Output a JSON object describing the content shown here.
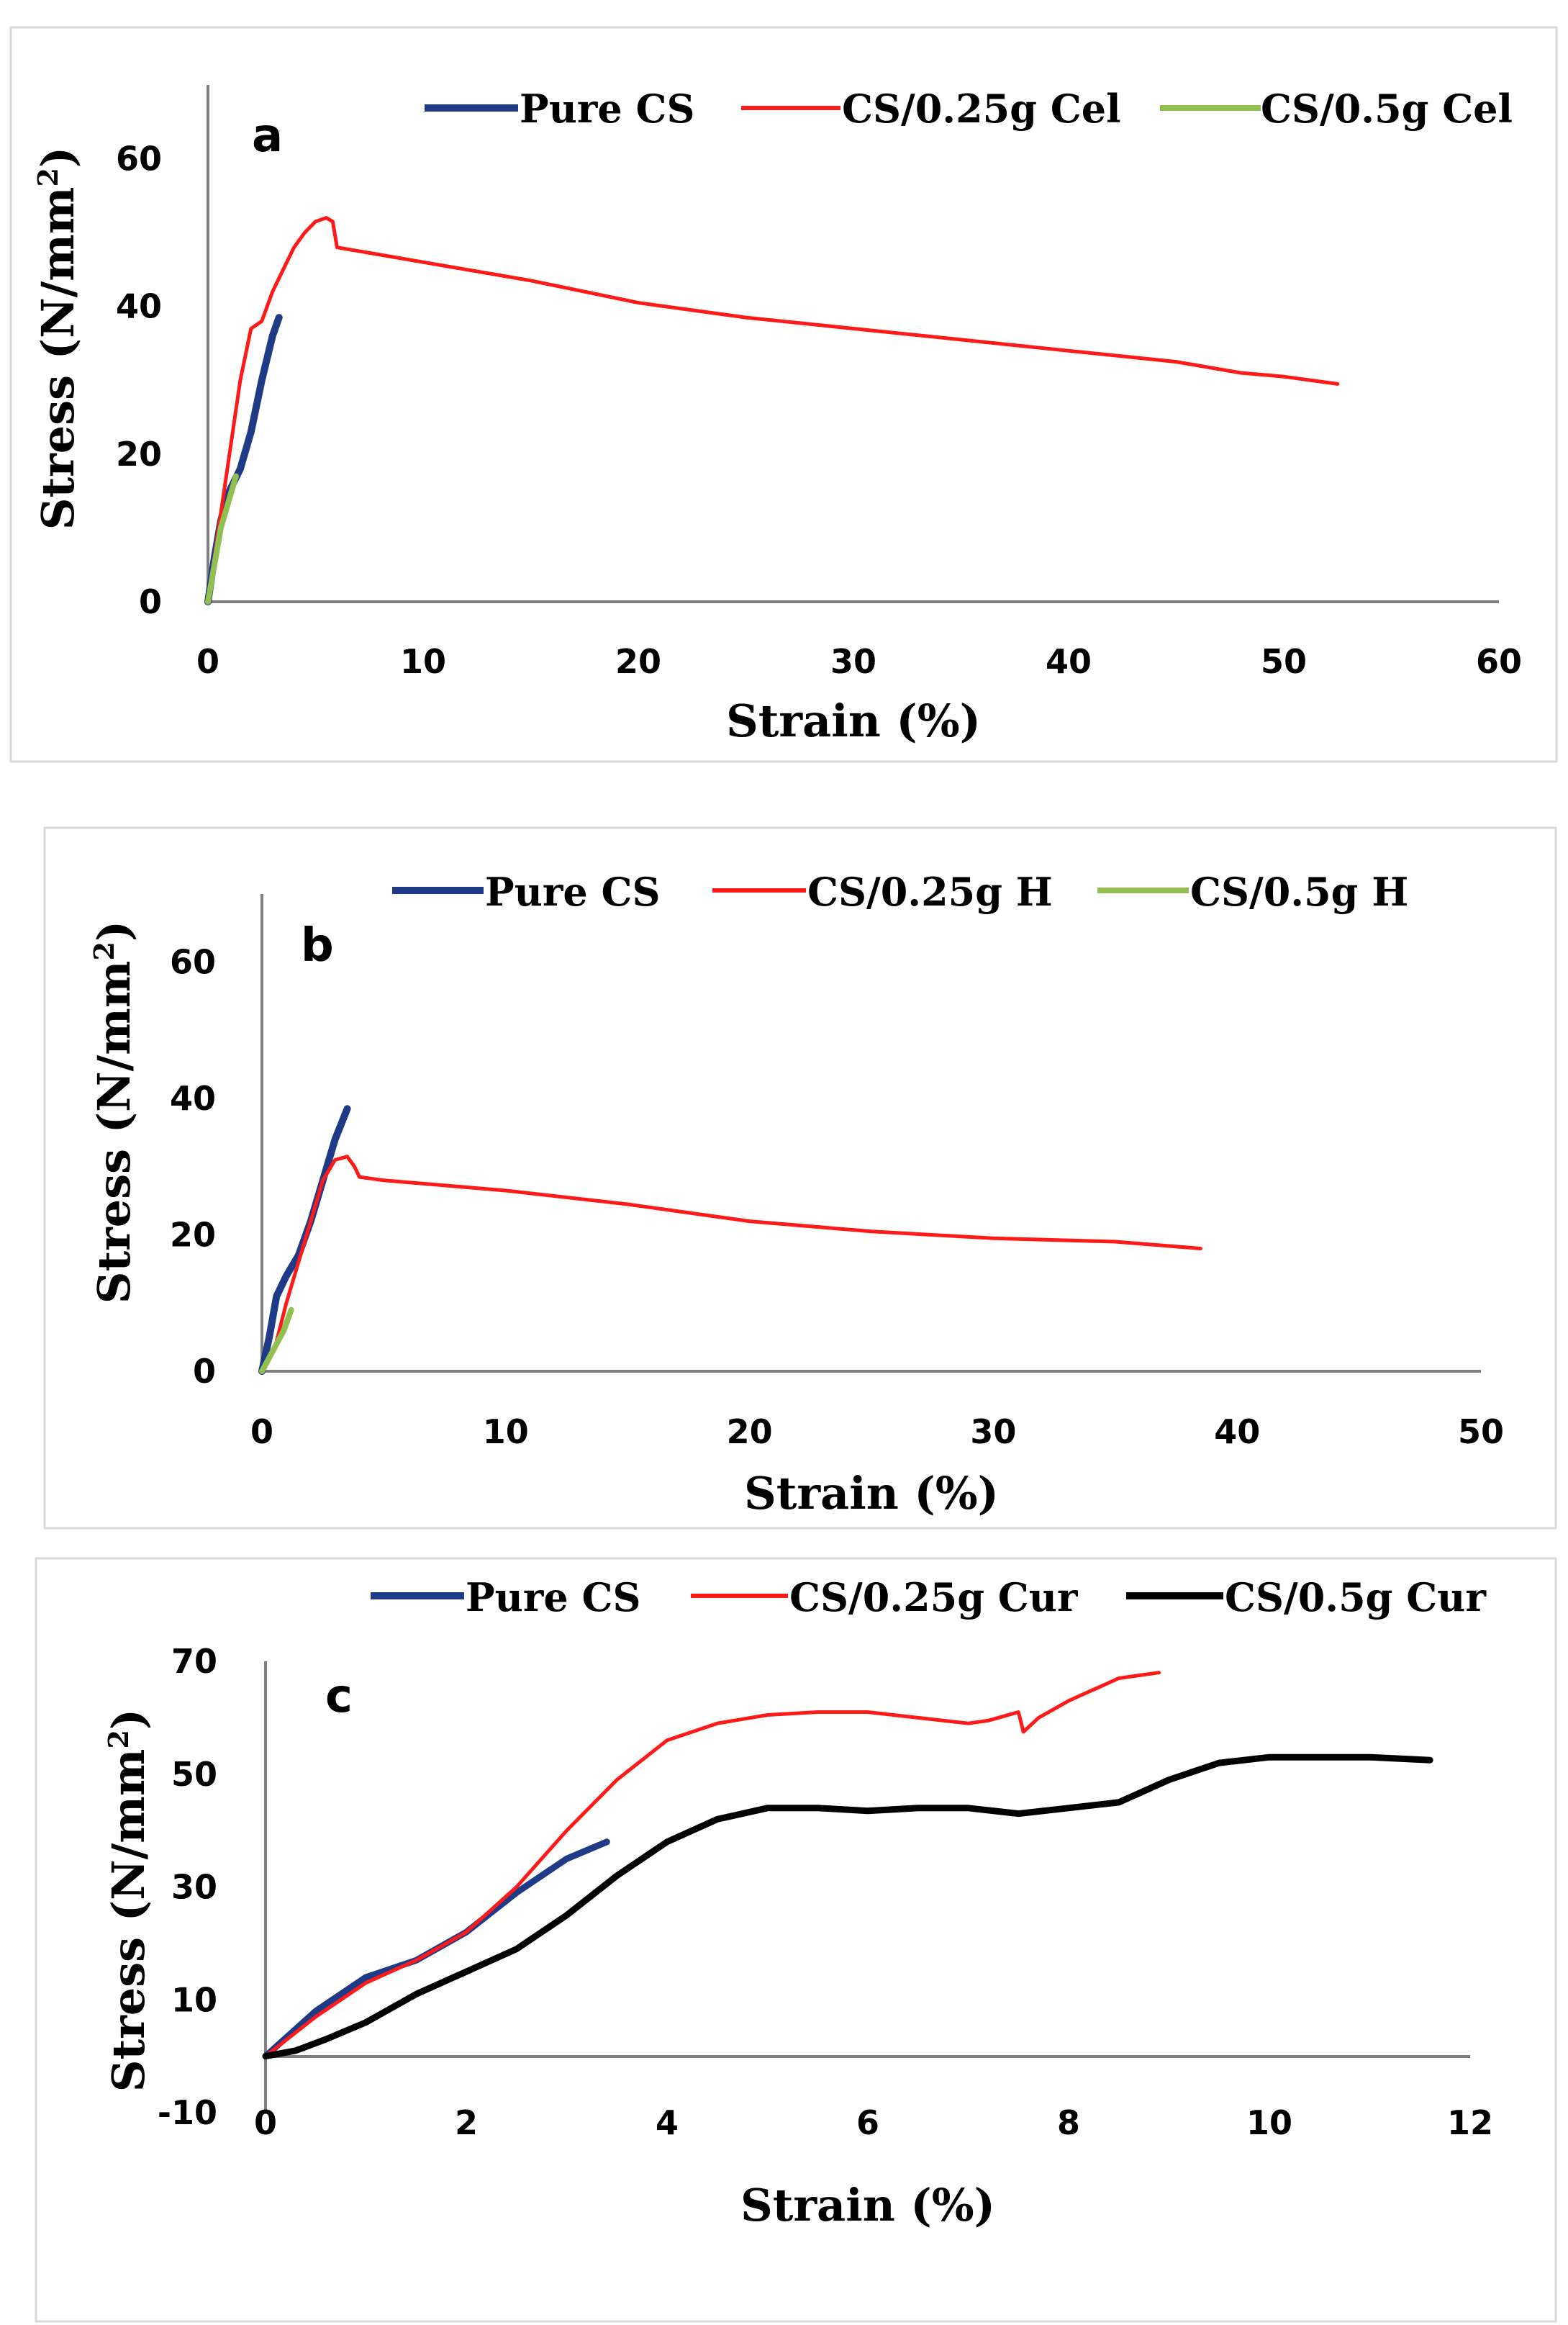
{
  "figure": {
    "panels": [
      "a",
      "b",
      "c"
    ]
  },
  "chart_data": [
    {
      "type": "line",
      "panel": "a",
      "xlabel": "Strain (%)",
      "ylabel": "Stress (N/mm",
      "ylabel_sup": "2",
      "ylabel_close": ")",
      "xlim": [
        0,
        60
      ],
      "ylim": [
        0,
        70
      ],
      "xticks": [
        0,
        10,
        20,
        30,
        40,
        50,
        60
      ],
      "yticks": [
        0,
        20,
        40,
        60
      ],
      "legend_position": "top",
      "series": [
        {
          "name": "Pure CS",
          "color": "#1f3b87",
          "x": [
            0,
            0.3,
            0.6,
            1.0,
            1.5,
            2.0,
            2.5,
            3.0,
            3.3
          ],
          "y": [
            0,
            6,
            11,
            15,
            18,
            23,
            30,
            36,
            38.5
          ]
        },
        {
          "name": "CS/0.25g Cel",
          "color": "#ff1a1a",
          "x": [
            0,
            0.5,
            1.0,
            1.5,
            2.0,
            2.5,
            3.0,
            3.5,
            4.0,
            4.5,
            5.0,
            5.5,
            5.8,
            6.0,
            7.0,
            10,
            15,
            20,
            25,
            30,
            35,
            40,
            45,
            48,
            50,
            52.5
          ],
          "y": [
            0,
            10,
            20,
            30,
            37,
            38,
            42,
            45,
            48,
            50,
            51.5,
            52,
            51.5,
            48,
            47.5,
            46,
            43.5,
            40.5,
            38.5,
            37,
            35.5,
            34,
            32.5,
            31,
            30.5,
            29.5
          ]
        },
        {
          "name": "CS/0.5g Cel",
          "color": "#92c050",
          "x": [
            0,
            0.3,
            0.6,
            1.0,
            1.3
          ],
          "y": [
            0,
            5,
            10,
            14,
            17
          ]
        }
      ]
    },
    {
      "type": "line",
      "panel": "b",
      "xlabel": "Strain (%)",
      "ylabel": "Stress (N/mm",
      "ylabel_sup": "2",
      "ylabel_close": ")",
      "xlim": [
        0,
        50
      ],
      "ylim": [
        0,
        70
      ],
      "xticks": [
        0,
        10,
        20,
        30,
        40,
        50
      ],
      "yticks": [
        0,
        20,
        40,
        60
      ],
      "legend_position": "top",
      "series": [
        {
          "name": "Pure CS",
          "color": "#1f3b87",
          "x": [
            0,
            0.3,
            0.6,
            1.0,
            1.5,
            2.0,
            2.5,
            3.0,
            3.5
          ],
          "y": [
            0,
            5,
            11,
            14,
            17,
            22,
            28,
            34,
            38.5
          ]
        },
        {
          "name": "CS/0.25g H",
          "color": "#ff1a1a",
          "x": [
            0,
            0.5,
            1.0,
            1.5,
            2.0,
            2.5,
            3.0,
            3.5,
            3.8,
            4.0,
            5,
            10,
            15,
            20,
            25,
            30,
            35,
            38.5
          ],
          "y": [
            0,
            3,
            10,
            16,
            22,
            28,
            31,
            31.5,
            30,
            28.5,
            28,
            26.5,
            24.5,
            22,
            20.5,
            19.5,
            19,
            18
          ]
        },
        {
          "name": "CS/0.5g H",
          "color": "#92c050",
          "x": [
            0,
            0.3,
            0.6,
            0.9,
            1.2
          ],
          "y": [
            0,
            2,
            4,
            6,
            9
          ]
        }
      ]
    },
    {
      "type": "line",
      "panel": "c",
      "xlabel": "Strain (%)",
      "ylabel": "Stress (N/mm",
      "ylabel_sup": "2",
      "ylabel_close": ")",
      "xlim": [
        0,
        12
      ],
      "ylim": [
        -10,
        70
      ],
      "xticks": [
        0,
        2,
        4,
        6,
        8,
        10,
        12
      ],
      "yticks": [
        -10,
        10,
        30,
        50,
        70
      ],
      "legend_position": "top",
      "series": [
        {
          "name": "Pure CS",
          "color": "#1f3b87",
          "x": [
            0,
            0.5,
            1.0,
            1.5,
            2.0,
            2.5,
            3.0,
            3.4
          ],
          "y": [
            0,
            8,
            14,
            17,
            22,
            29,
            35,
            38
          ]
        },
        {
          "name": "CS/0.25g Cur",
          "color": "#ff1a1a",
          "x": [
            0,
            0.5,
            1.0,
            1.5,
            2.0,
            2.5,
            3.0,
            3.5,
            4.0,
            4.5,
            5.0,
            5.5,
            6.0,
            6.5,
            7.0,
            7.2,
            7.5,
            7.55,
            7.7,
            8.0,
            8.5,
            8.9
          ],
          "y": [
            0,
            7,
            13,
            17,
            22,
            30,
            40,
            49,
            56,
            59,
            60.5,
            61,
            61,
            60,
            59,
            59.5,
            61,
            57.5,
            60,
            63,
            67,
            68
          ]
        },
        {
          "name": "CS/0.5g Cur",
          "color": "#000000",
          "x": [
            0,
            0.3,
            0.6,
            1.0,
            1.5,
            2.0,
            2.5,
            3.0,
            3.5,
            4.0,
            4.5,
            5.0,
            5.5,
            6.0,
            6.5,
            7.0,
            7.5,
            8.0,
            8.5,
            9.0,
            9.5,
            10.0,
            10.5,
            11.0,
            11.6
          ],
          "y": [
            0,
            1,
            3,
            6,
            11,
            15,
            19,
            25,
            32,
            38,
            42,
            44,
            44,
            43.5,
            44,
            44,
            43,
            44,
            45,
            49,
            52,
            53,
            53,
            53,
            52.5
          ]
        }
      ]
    }
  ]
}
